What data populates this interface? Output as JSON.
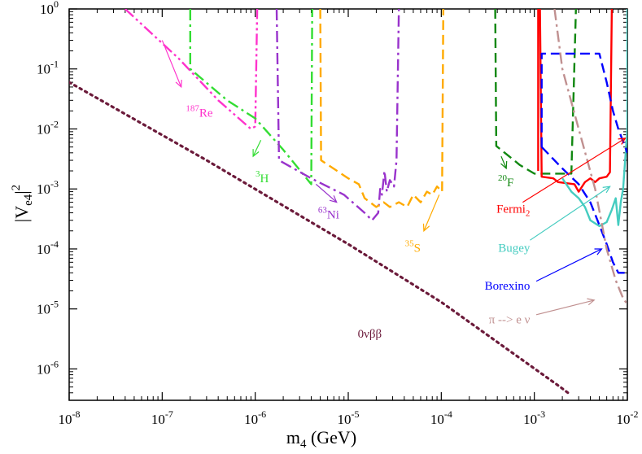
{
  "chart_data": {
    "type": "line",
    "title": "",
    "xscale": "log",
    "yscale": "log",
    "xlim": [
      1e-08,
      0.01
    ],
    "ylim": [
      3e-07,
      1
    ],
    "xlabel": {
      "base": "m",
      "sub": "4",
      "rest": " (GeV)"
    },
    "ylabel": {
      "base": "|V",
      "sub": "e4",
      "rest": "|",
      "sup": "2"
    },
    "x_ticks": [
      {
        "value": 1e-08,
        "base": "10",
        "exp": "-8"
      },
      {
        "value": 1e-07,
        "base": "10",
        "exp": "-7"
      },
      {
        "value": 1e-06,
        "base": "10",
        "exp": "-6"
      },
      {
        "value": 1e-05,
        "base": "10",
        "exp": "-5"
      },
      {
        "value": 0.0001,
        "base": "10",
        "exp": "-4"
      },
      {
        "value": 0.001,
        "base": "10",
        "exp": "-3"
      },
      {
        "value": 0.01,
        "base": "10",
        "exp": "-2"
      }
    ],
    "y_ticks": [
      {
        "value": 1e-06,
        "base": "10",
        "exp": "-6"
      },
      {
        "value": 1e-05,
        "base": "10",
        "exp": "-5"
      },
      {
        "value": 0.0001,
        "base": "10",
        "exp": "-4"
      },
      {
        "value": 0.001,
        "base": "10",
        "exp": "-3"
      },
      {
        "value": 0.01,
        "base": "10",
        "exp": "-2"
      },
      {
        "value": 0.1,
        "base": "10",
        "exp": "-1"
      },
      {
        "value": 1,
        "base": "10",
        "exp": "0"
      }
    ],
    "series": [
      {
        "name": "0vbb",
        "color": "#6b1a3a",
        "dash": "dotted",
        "points": [
          [
            1e-08,
            0.06
          ],
          [
            3e-07,
            0.003
          ],
          [
            1e-05,
            0.00012
          ],
          [
            0.0001,
            1.3e-05
          ],
          [
            0.0019,
            5e-07
          ],
          [
            0.0023,
            4e-07
          ]
        ]
      },
      {
        "name": "187Re",
        "color": "#ff33cc",
        "dash": "dashdotdot",
        "points": [
          [
            4e-08,
            1
          ],
          [
            1.5e-07,
            0.15
          ],
          [
            4e-07,
            0.03
          ],
          [
            9e-07,
            0.01
          ],
          [
            1e-06,
            0.011
          ],
          [
            1.05e-06,
            1
          ]
        ]
      },
      {
        "name": "3H",
        "color": "#33dd33",
        "dash": "dashdot",
        "points": [
          [
            2e-07,
            1
          ],
          [
            2e-07,
            0.1
          ],
          [
            5e-07,
            0.03
          ],
          [
            1e-06,
            0.015
          ],
          [
            2e-06,
            0.0045
          ],
          [
            4e-06,
            0.0012
          ],
          [
            4.1e-06,
            1
          ]
        ]
      },
      {
        "name": "63Ni",
        "color": "#9933cc",
        "dash": "dashdot",
        "points": [
          [
            1.7e-06,
            1
          ],
          [
            1.8e-06,
            0.003
          ],
          [
            4e-06,
            0.0015
          ],
          [
            9e-06,
            0.0008
          ],
          [
            1.5e-05,
            0.0004
          ],
          [
            1.8e-05,
            0.0003
          ],
          [
            2.1e-05,
            0.0004
          ],
          [
            2.2e-05,
            0.001
          ],
          [
            2.3e-05,
            0.0008
          ],
          [
            2.45e-05,
            0.002
          ],
          [
            2.6e-05,
            0.0009
          ],
          [
            2.8e-05,
            0.0014
          ],
          [
            3.1e-05,
            0.0011
          ],
          [
            3.3e-05,
            0.003
          ],
          [
            3.5e-05,
            1
          ]
        ]
      },
      {
        "name": "35S",
        "color": "#ffaa00",
        "dash": "dashed",
        "points": [
          [
            5e-06,
            1
          ],
          [
            5.1e-06,
            0.003
          ],
          [
            1e-05,
            0.0015
          ],
          [
            1.3e-05,
            0.0012
          ],
          [
            1.5e-05,
            0.0007
          ],
          [
            2e-05,
            0.0005
          ],
          [
            2.4e-05,
            0.0006
          ],
          [
            2.8e-05,
            0.0005
          ],
          [
            3.5e-05,
            0.0006
          ],
          [
            4.3e-05,
            0.0005
          ],
          [
            5e-05,
            0.0008
          ],
          [
            6e-05,
            0.0006
          ],
          [
            7e-05,
            0.0009
          ],
          [
            8e-05,
            0.0008
          ],
          [
            9e-05,
            0.0011
          ],
          [
            0.000102,
            0.0009
          ],
          [
            0.000105,
            1
          ]
        ]
      },
      {
        "name": "20F",
        "color": "#118811",
        "dash": "dashed",
        "points": [
          [
            0.00038,
            1
          ],
          [
            0.00039,
            0.0052
          ],
          [
            0.0007,
            0.0025
          ],
          [
            0.001,
            0.0018
          ],
          [
            0.0025,
            0.0018
          ],
          [
            0.0028,
            1
          ]
        ]
      },
      {
        "name": "Fermi2",
        "color": "#ff0000",
        "dash": "solid",
        "points": [
          [
            0.0011,
            0.002
          ],
          [
            0.0011,
            1
          ],
          [
            0.00115,
            1
          ],
          [
            0.0012,
            0.0016
          ],
          [
            0.0016,
            0.0015
          ],
          [
            0.0018,
            0.0013
          ],
          [
            0.0027,
            0.0012
          ],
          [
            0.003,
            0.0009
          ],
          [
            0.0035,
            0.0013
          ],
          [
            0.004,
            0.0015
          ],
          [
            0.0045,
            0.0013
          ],
          [
            0.005,
            0.0015
          ],
          [
            0.006,
            0.0016
          ],
          [
            0.0065,
            0.0019
          ],
          [
            0.0068,
            1
          ]
        ]
      },
      {
        "name": "Bugey",
        "color": "#44ccc0",
        "dash": "solid",
        "points": [
          [
            0.002,
            0.0015
          ],
          [
            0.0025,
            0.0009
          ],
          [
            0.003,
            0.0007
          ],
          [
            0.0035,
            0.0005
          ],
          [
            0.004,
            0.0003
          ],
          [
            0.005,
            0.00024
          ],
          [
            0.006,
            0.00028
          ],
          [
            0.0068,
            0.00045
          ],
          [
            0.0075,
            0.0007
          ],
          [
            0.008,
            0.00025
          ],
          [
            0.0085,
            0.0006
          ],
          [
            0.009,
            0.001
          ],
          [
            0.01,
            0.01
          ],
          [
            0.01,
            1
          ]
        ]
      },
      {
        "name": "Borexino",
        "color": "#0000ff",
        "dash": "dashed",
        "points": [
          [
            0.0012,
            0.005
          ],
          [
            0.002,
            0.0022
          ],
          [
            0.003,
            0.0012
          ],
          [
            0.004,
            0.0006
          ],
          [
            0.005,
            0.00025
          ],
          [
            0.006,
            0.00012
          ],
          [
            0.007,
            6e-05
          ],
          [
            0.008,
            4e-05
          ],
          [
            0.01,
            4e-05
          ]
        ]
      },
      {
        "name": "Borexino-upper",
        "color": "#0000ff",
        "dash": "dashed",
        "points": [
          [
            0.0012,
            0.005
          ],
          [
            0.0012,
            0.18
          ],
          [
            0.005,
            0.18
          ],
          [
            0.006,
            0.06
          ],
          [
            0.007,
            0.02
          ],
          [
            0.008,
            0.01
          ],
          [
            0.01,
            0.004
          ]
        ]
      },
      {
        "name": "pi-enu",
        "color": "#c09090",
        "dash": "dashdot",
        "points": [
          [
            0.00165,
            1
          ],
          [
            0.002,
            0.1
          ],
          [
            0.003,
            0.01
          ],
          [
            0.0045,
            0.001
          ],
          [
            0.006,
            0.0001
          ],
          [
            0.0075,
            3e-05
          ],
          [
            0.009,
            1.5e-05
          ],
          [
            0.01,
            1.2e-05
          ]
        ]
      }
    ],
    "annotations": [
      {
        "name": "label-0vbb",
        "text": "0νββ",
        "color": "#6b1a3a",
        "tx": 1.7e-05,
        "ty": 3.3e-06,
        "anchor": "middle"
      },
      {
        "name": "label-187re",
        "sup": "187",
        "text": "Re",
        "color": "#ff33cc",
        "tx": 3.5e-07,
        "ty": 0.016,
        "anchor": "end",
        "arrow": [
          [
            1e-07,
            0.3
          ],
          [
            1.6e-07,
            0.05
          ]
        ]
      },
      {
        "name": "label-3h",
        "sup": "3",
        "text": "H",
        "color": "#33dd33",
        "tx": 1.4e-06,
        "ty": 0.0013,
        "anchor": "end",
        "arrow": [
          [
            1.15e-06,
            0.0065
          ],
          [
            9.5e-07,
            0.0035
          ]
        ]
      },
      {
        "name": "label-63ni",
        "sup": "63",
        "text": "Ni",
        "color": "#9933cc",
        "tx": 8e-06,
        "ty": 0.00032,
        "anchor": "end",
        "arrow": [
          [
            4.5e-06,
            0.0012
          ],
          [
            7.5e-06,
            0.0006
          ]
        ]
      },
      {
        "name": "label-35s",
        "sup": "35",
        "text": "S",
        "color": "#ffaa00",
        "tx": 6e-05,
        "ty": 9e-05,
        "anchor": "end",
        "arrow": [
          [
            9.5e-05,
            0.0008
          ],
          [
            6.5e-05,
            0.0002
          ]
        ]
      },
      {
        "name": "label-20f",
        "sup": "20",
        "text": "F",
        "color": "#118811",
        "tx": 0.0006,
        "ty": 0.0011,
        "anchor": "end",
        "arrow": [
          [
            0.00044,
            0.0035
          ],
          [
            0.0005,
            0.0022
          ]
        ]
      },
      {
        "name": "label-fermi2",
        "text": "Fermi",
        "sub": "2",
        "color": "#ff0000",
        "tx": 0.0009,
        "ty": 0.0004,
        "anchor": "end",
        "arrow": [
          [
            0.00075,
            0.0006
          ],
          [
            0.0095,
            0.007
          ]
        ]
      },
      {
        "name": "label-bugey",
        "text": "Bugey",
        "color": "#44ccc0",
        "tx": 0.0009,
        "ty": 9e-05,
        "anchor": "end",
        "arrow": [
          [
            0.0009,
            0.00014
          ],
          [
            0.0065,
            0.0011
          ]
        ]
      },
      {
        "name": "label-borexino",
        "text": "Borexino",
        "color": "#0000ff",
        "tx": 0.0009,
        "ty": 2.1e-05,
        "anchor": "end",
        "arrow": [
          [
            0.00105,
            2.9e-05
          ],
          [
            0.0053,
            0.0001
          ]
        ]
      },
      {
        "name": "label-pi-enu",
        "text": "π --> e ν",
        "color": "#c09090",
        "tx": 0.0009,
        "ty": 5.7e-06,
        "anchor": "end",
        "arrow": [
          [
            0.00105,
            8e-06
          ],
          [
            0.0044,
            1.4e-05
          ]
        ]
      }
    ]
  }
}
